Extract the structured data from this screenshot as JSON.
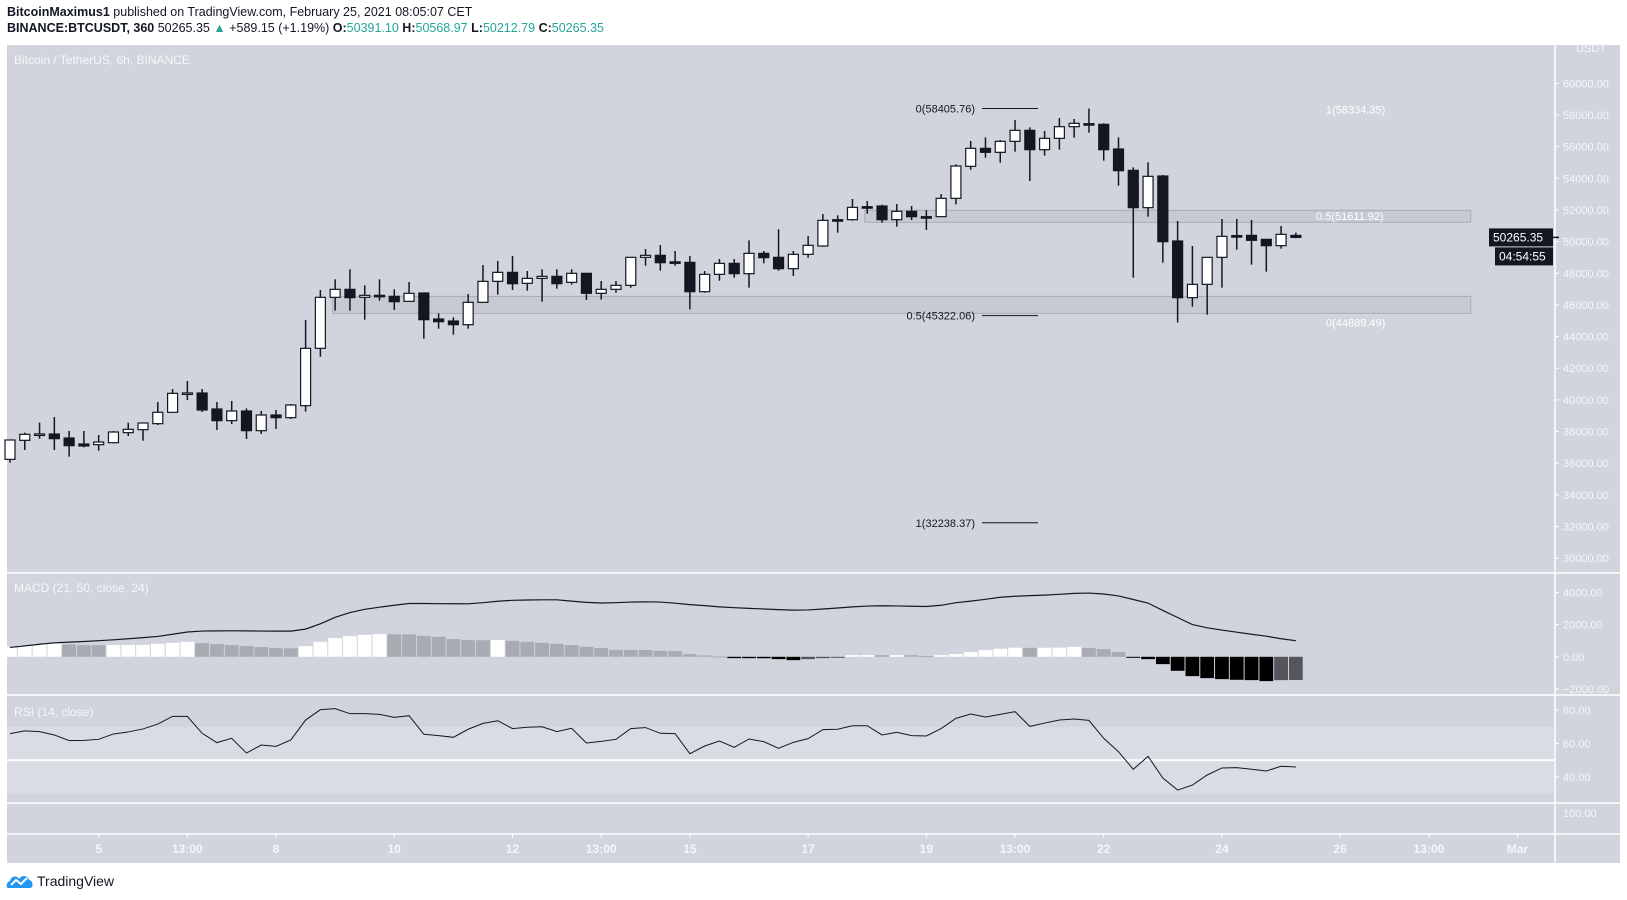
{
  "header": {
    "author": "BitcoinMaximus1",
    "published": "published on TradingView.com, February 25, 2021 08:05:07 CET",
    "symbol": "BINANCE:BTCUSDT, 360",
    "last": "50265.35",
    "change": "+589.15 (+1.19%)",
    "o_label": "O:",
    "o": "50391.10",
    "h_label": "H:",
    "h": "50568.97",
    "l_label": "L:",
    "l": "50212.79",
    "c_label": "C:",
    "c": "50265.35",
    "direction_icon": "triangle-up-icon"
  },
  "footer": {
    "logo_text": "TradingView",
    "logo_icon": "tradingview-cloud-icon"
  },
  "colors": {
    "pane_bg": "#d1d4dc",
    "band": "#d9dce3",
    "separator": "#ffffff",
    "bull": "#ffffff",
    "bear": "#131722",
    "axis_text": "#f5f6f9",
    "teal": "#26a69a",
    "logo": "#2196f3",
    "hist_pos_up": "#ffffff",
    "hist_pos_down": "#a9abb3",
    "hist_neg_down": "#000000",
    "hist_neg_up": "#55565b",
    "zone_fill": "#c4c6ce",
    "zone_stroke": "#a9acb5"
  },
  "chart_data": {
    "type": "candlestick",
    "title": "Bitcoin / TetherUS, 6h, BINANCE",
    "currency": "USDT",
    "ylim": [
      29078,
      62420
    ],
    "price_ticks": [
      30000,
      32000,
      34000,
      36000,
      38000,
      40000,
      42000,
      44000,
      46000,
      48000,
      50000,
      52000,
      54000,
      56000,
      58000,
      60000
    ],
    "price_tick_labels": [
      "30000.00",
      "32000.00",
      "34000.00",
      "36000.00",
      "38000.00",
      "40000.00",
      "42000.00",
      "44000.00",
      "46000.00",
      "48000.00",
      "50000.00",
      "52000.00",
      "54000.00",
      "56000.00",
      "58000.00",
      "60000.00"
    ],
    "last_price": {
      "value": 50265.35,
      "label": "50265.35",
      "countdown": "04:54:55"
    },
    "time_ticks": [
      {
        "label": "5",
        "t": "02-05 01:00"
      },
      {
        "label": "13:00",
        "t": "02-06 13:00"
      },
      {
        "label": "8",
        "t": "02-08 01:00"
      },
      {
        "label": "10",
        "t": "02-10 01:00"
      },
      {
        "label": "12",
        "t": "02-12 01:00"
      },
      {
        "label": "13:00",
        "t": "02-13 13:00"
      },
      {
        "label": "15",
        "t": "02-15 01:00"
      },
      {
        "label": "17",
        "t": "02-17 01:00"
      },
      {
        "label": "19",
        "t": "02-19 01:00"
      },
      {
        "label": "13:00",
        "t": "02-20 13:00"
      },
      {
        "label": "22",
        "t": "02-22 01:00"
      },
      {
        "label": "24",
        "t": "02-24 01:00"
      },
      {
        "label": "26",
        "t": "02-26 01:00"
      },
      {
        "label": "13:00",
        "t": "02-27 13:00"
      },
      {
        "label": "Mar",
        "t": "03-01 01:00"
      }
    ],
    "candles_fields": [
      "t",
      "open",
      "high",
      "low",
      "close"
    ],
    "candles": [
      [
        "02-03 13:00",
        36245,
        37500,
        36035,
        37467
      ],
      [
        "02-03 19:00",
        37446,
        37930,
        36835,
        37825
      ],
      [
        "02-04 01:00",
        37825,
        38562,
        37551,
        37850
      ],
      [
        "02-04 07:00",
        37846,
        38920,
        36835,
        37551
      ],
      [
        "02-04 13:00",
        37593,
        38035,
        36413,
        37108
      ],
      [
        "02-04 19:00",
        37214,
        38035,
        37003,
        37087
      ],
      [
        "02-05 01:00",
        37172,
        37782,
        36793,
        37340
      ],
      [
        "02-05 07:00",
        37298,
        38035,
        37256,
        37972
      ],
      [
        "02-05 13:00",
        37930,
        38562,
        37720,
        38140
      ],
      [
        "02-05 19:00",
        38119,
        38560,
        37424,
        38541
      ],
      [
        "02-06 01:00",
        38499,
        39868,
        38414,
        39215
      ],
      [
        "02-06 07:00",
        39215,
        40689,
        39215,
        40415
      ],
      [
        "02-06 13:00",
        40415,
        41194,
        39994,
        40440
      ],
      [
        "02-06 19:00",
        40436,
        40689,
        39236,
        39362
      ],
      [
        "02-07 01:00",
        39425,
        39868,
        38098,
        38688
      ],
      [
        "02-07 07:00",
        38688,
        39930,
        38478,
        39299
      ],
      [
        "02-07 13:00",
        39299,
        39467,
        37530,
        38056
      ],
      [
        "02-07 19:00",
        38056,
        39299,
        37846,
        39046
      ],
      [
        "02-08 01:00",
        39046,
        39362,
        38161,
        38878
      ],
      [
        "02-08 07:00",
        38878,
        39740,
        38793,
        39678
      ],
      [
        "02-08 13:00",
        39636,
        45047,
        39257,
        43257
      ],
      [
        "02-08 19:00",
        43257,
        46942,
        42730,
        46479
      ],
      [
        "02-09 01:00",
        46479,
        47616,
        45636,
        46984
      ],
      [
        "02-09 07:00",
        46984,
        48248,
        45636,
        46458
      ],
      [
        "02-09 13:00",
        46479,
        47237,
        45068,
        46606
      ],
      [
        "02-09 19:00",
        46606,
        47616,
        46268,
        46520
      ],
      [
        "02-10 01:00",
        46542,
        46984,
        45679,
        46205
      ],
      [
        "02-10 07:00",
        46226,
        47447,
        46226,
        46732
      ],
      [
        "02-10 13:00",
        46753,
        46753,
        43868,
        45068
      ],
      [
        "02-10 19:00",
        45110,
        45468,
        44499,
        44941
      ],
      [
        "02-11 01:00",
        44983,
        45215,
        44120,
        44752
      ],
      [
        "02-11 07:00",
        44752,
        46690,
        44499,
        46163
      ],
      [
        "02-11 13:00",
        46163,
        48522,
        46163,
        47490
      ],
      [
        "02-11 19:00",
        47490,
        48775,
        46648,
        48058
      ],
      [
        "02-12 01:00",
        48058,
        49090,
        46942,
        47342
      ],
      [
        "02-12 07:00",
        47363,
        48142,
        46900,
        47679
      ],
      [
        "02-12 13:00",
        47679,
        48248,
        46205,
        47806
      ],
      [
        "02-12 19:00",
        47806,
        48248,
        47026,
        47342
      ],
      [
        "02-13 01:00",
        47426,
        48248,
        47279,
        47996
      ],
      [
        "02-13 07:00",
        47996,
        47996,
        46311,
        46732
      ],
      [
        "02-13 13:00",
        46732,
        47511,
        46332,
        46984
      ],
      [
        "02-13 19:00",
        46984,
        47511,
        46774,
        47237
      ],
      [
        "02-14 01:00",
        47237,
        49006,
        47090,
        49006
      ],
      [
        "02-14 07:00",
        49006,
        49532,
        48479,
        49132
      ],
      [
        "02-14 13:00",
        49132,
        49784,
        48163,
        48668
      ],
      [
        "02-14 19:00",
        48720,
        49406,
        48479,
        48700
      ],
      [
        "02-15 01:00",
        48689,
        49090,
        45720,
        46836
      ],
      [
        "02-15 07:00",
        46836,
        48142,
        46773,
        47932
      ],
      [
        "02-15 13:00",
        47932,
        48900,
        47531,
        48626
      ],
      [
        "02-15 19:00",
        48626,
        48900,
        47720,
        47974
      ],
      [
        "02-16 01:00",
        47974,
        50079,
        47089,
        49258
      ],
      [
        "02-16 07:00",
        49258,
        49406,
        48626,
        48984
      ],
      [
        "02-16 13:00",
        49006,
        50774,
        48163,
        48289
      ],
      [
        "02-16 19:00",
        48289,
        49406,
        47826,
        49195
      ],
      [
        "02-17 01:00",
        49195,
        50353,
        48984,
        49764
      ],
      [
        "02-17 07:00",
        49722,
        51743,
        49680,
        51343
      ],
      [
        "02-17 13:00",
        51385,
        51659,
        50564,
        51301
      ],
      [
        "02-17 19:00",
        51385,
        52691,
        51322,
        52164
      ],
      [
        "02-18 01:00",
        52206,
        52564,
        51764,
        52150
      ],
      [
        "02-18 07:00",
        52249,
        52333,
        51196,
        51385
      ],
      [
        "02-18 13:00",
        51385,
        52375,
        50943,
        51912
      ],
      [
        "02-18 19:00",
        51912,
        52249,
        51364,
        51575
      ],
      [
        "02-19 01:00",
        51575,
        51996,
        50732,
        51560
      ],
      [
        "02-19 07:00",
        51575,
        53007,
        51575,
        52733
      ],
      [
        "02-19 13:00",
        52732,
        54881,
        52353,
        54775
      ],
      [
        "02-19 19:00",
        54754,
        56355,
        54544,
        55891
      ],
      [
        "02-20 01:00",
        55891,
        56586,
        55302,
        55639
      ],
      [
        "02-20 07:00",
        55639,
        56418,
        54986,
        56334
      ],
      [
        "02-20 13:00",
        56334,
        57682,
        55681,
        57029
      ],
      [
        "02-20 19:00",
        57029,
        57218,
        53828,
        55807
      ],
      [
        "02-21 01:00",
        55807,
        56986,
        55428,
        56523
      ],
      [
        "02-21 07:00",
        56523,
        57808,
        55807,
        57260
      ],
      [
        "02-21 13:00",
        57260,
        57745,
        56565,
        57471
      ],
      [
        "02-21 19:00",
        57450,
        58405,
        56881,
        57420
      ],
      [
        "02-22 01:00",
        57408,
        57471,
        55112,
        55807
      ],
      [
        "02-22 07:00",
        55849,
        56586,
        53533,
        54480
      ],
      [
        "02-22 13:00",
        54502,
        54692,
        47721,
        52144
      ],
      [
        "02-22 19:00",
        52144,
        55008,
        51575,
        54123
      ],
      [
        "02-23 01:00",
        54144,
        54208,
        48669,
        49995
      ],
      [
        "02-23 07:00",
        50038,
        51301,
        44889,
        46457
      ],
      [
        "02-23 13:00",
        46457,
        49722,
        45889,
        47300
      ],
      [
        "02-23 19:00",
        47300,
        49006,
        45383,
        49006
      ],
      [
        "02-24 01:00",
        49006,
        51427,
        47089,
        50332
      ],
      [
        "02-24 07:00",
        50380,
        51427,
        49490,
        50330
      ],
      [
        "02-24 13:00",
        50395,
        51364,
        48542,
        50080
      ],
      [
        "02-24 19:00",
        50143,
        50143,
        48100,
        49743
      ],
      [
        "02-25 01:00",
        49743,
        50985,
        49553,
        50459
      ],
      [
        "02-25 07:00",
        50391,
        50569,
        50213,
        50265
      ]
    ],
    "zones": [
      {
        "top": 51975,
        "bottom": 51217,
        "start": "02-18 00:00",
        "end": "02-28 06:00"
      },
      {
        "top": 46541,
        "bottom": 45467,
        "start": "02-09 00:00",
        "end": "02-28 06:00"
      }
    ],
    "fib_labels": [
      {
        "label": "0(58405.76)",
        "price": 58405.76,
        "side": "left"
      },
      {
        "label": "0.5(45322.06)",
        "price": 45322.06,
        "side": "left"
      },
      {
        "label": "1(32238.37)",
        "price": 32238.37,
        "side": "left"
      },
      {
        "label": "1(58334.35)",
        "price": 58334.35,
        "side": "right"
      },
      {
        "label": "0.5(51611.92)",
        "price": 51611.92,
        "side": "right"
      },
      {
        "label": "0(44889.49)",
        "price": 44889.49,
        "side": "right"
      }
    ],
    "macd": {
      "title": "MACD (21, 50, close, 24)",
      "ticks": [
        4000,
        2000,
        0,
        -2000
      ],
      "tick_labels": [
        "4000.00",
        "2000.00",
        "0.00",
        "−2000.00"
      ],
      "line": [
        580,
        680,
        780,
        870,
        910,
        950,
        1000,
        1056,
        1120,
        1190,
        1263,
        1400,
        1540,
        1600,
        1610,
        1615,
        1610,
        1600,
        1595,
        1594,
        1720,
        2050,
        2450,
        2750,
        2950,
        3080,
        3200,
        3312,
        3310,
        3300,
        3295,
        3291,
        3360,
        3450,
        3510,
        3530,
        3540,
        3540,
        3460,
        3380,
        3340,
        3360,
        3400,
        3415,
        3400,
        3330,
        3240,
        3180,
        3100,
        3050,
        3010,
        2970,
        2930,
        2900,
        2910,
        2970,
        3030,
        3100,
        3150,
        3170,
        3160,
        3140,
        3126,
        3200,
        3360,
        3460,
        3570,
        3700,
        3760,
        3800,
        3830,
        3880,
        3940,
        3960,
        3900,
        3780,
        3560,
        3333,
        2880,
        2442,
        2000,
        1800,
        1660,
        1530,
        1400,
        1280,
        1120,
        1000
      ],
      "histogram": [
        620,
        725,
        807,
        810,
        766,
        725,
        720,
        730,
        735,
        740,
        807,
        869,
        931,
        849,
        787,
        725,
        662,
        600,
        538,
        530,
        662,
        931,
        1159,
        1283,
        1366,
        1407,
        1400,
        1395,
        1304,
        1242,
        1097,
        1035,
        1030,
        1040,
        993,
        931,
        869,
        807,
        725,
        620,
        538,
        435,
        430,
        425,
        373,
        352,
        166,
        83,
        20,
        -83,
        -85,
        -90,
        -145,
        -207,
        -145,
        -83,
        -41,
        104,
        110,
        100,
        104,
        100,
        41,
        104,
        166,
        290,
        414,
        497,
        565,
        555,
        560,
        570,
        621,
        538,
        476,
        290,
        -20,
        -145,
        -455,
        -869,
        -1200,
        -1325,
        -1387,
        -1428,
        -1449,
        -1511,
        -1449,
        -1440
      ]
    },
    "rsi": {
      "title": "RSI (14, close)",
      "ticks": [
        80,
        60,
        40
      ],
      "tick_labels": [
        "80.00",
        "60.00",
        "40.00"
      ],
      "bands": [
        70,
        30
      ],
      "values": [
        65.9,
        67.5,
        67.1,
        65.1,
        61.7,
        61.9,
        62.5,
        65.7,
        66.9,
        68.7,
        71.6,
        76.2,
        76.2,
        66.1,
        60.5,
        63.1,
        54.3,
        59.1,
        58.3,
        62.1,
        74,
        80.2,
        80.8,
        77.8,
        77.8,
        77.4,
        75.6,
        76.6,
        65.5,
        64.7,
        63.7,
        68.5,
        72,
        73.6,
        68.9,
        69.7,
        70,
        67.1,
        69.1,
        60.3,
        61.3,
        62.5,
        68.9,
        69.5,
        66.1,
        65.9,
        53.9,
        58.5,
        61.5,
        57.7,
        62.7,
        61.1,
        57.1,
        60.7,
        62.9,
        68.3,
        68.5,
        70.6,
        70.6,
        65.1,
        66.7,
        64.7,
        64.5,
        68.9,
        75,
        77.6,
        75.8,
        77.4,
        79,
        70.2,
        72.2,
        74,
        74.6,
        73.8,
        63.1,
        55.1,
        44.6,
        52.3,
        39.4,
        32.2,
        35.2,
        41.2,
        45.4,
        45.6,
        44.6,
        43.6,
        46.4,
        46
      ]
    },
    "extra_pane_label": "100.00"
  }
}
